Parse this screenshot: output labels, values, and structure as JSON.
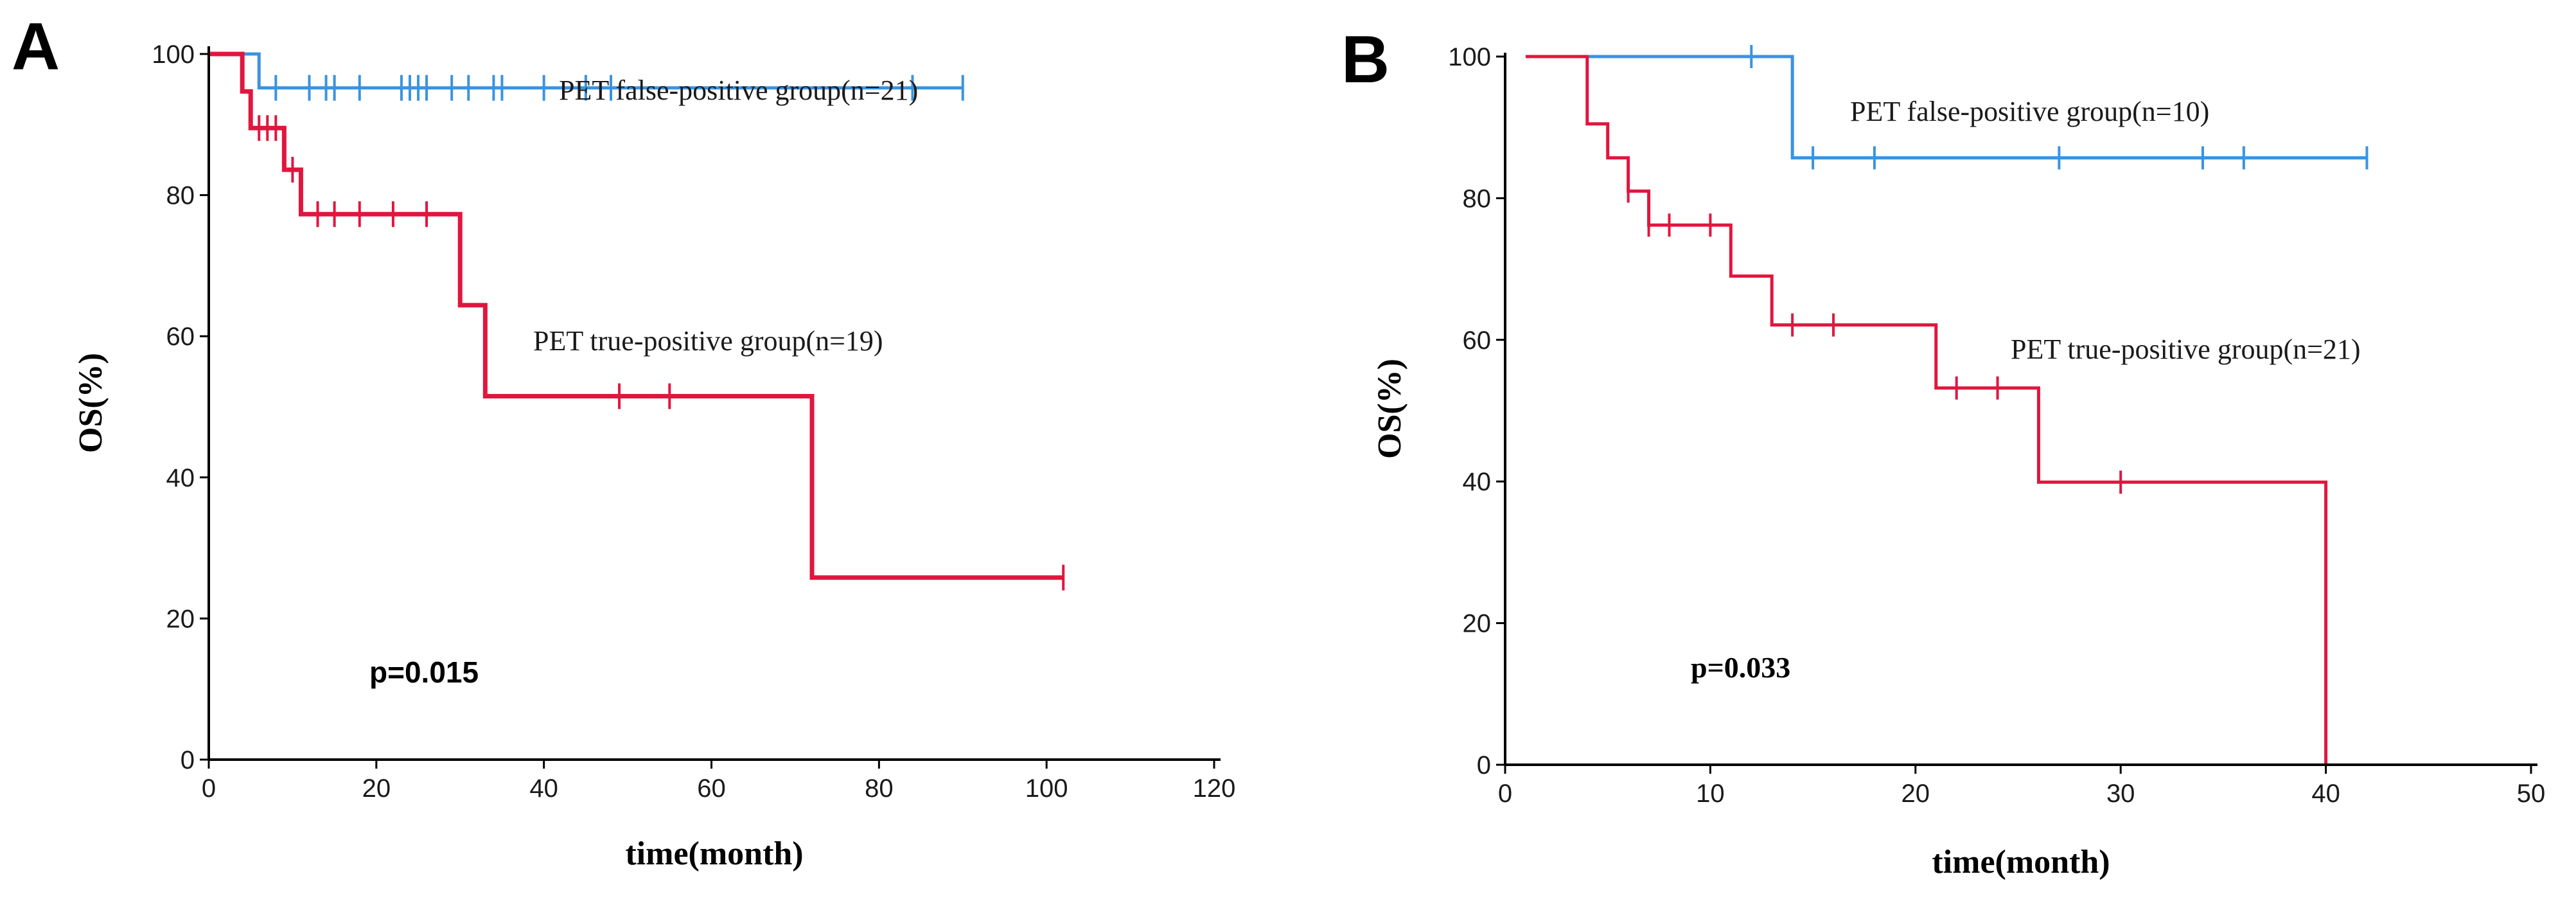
{
  "chart_data": [
    {
      "type": "line",
      "subtype": "kaplan-meier",
      "panel_label": "A",
      "xlabel": "time(month)",
      "ylabel": "OS(%)",
      "xlim": [
        0,
        120
      ],
      "ylim": [
        0,
        100
      ],
      "xticks": [
        0,
        20,
        40,
        60,
        80,
        100,
        120
      ],
      "yticks": [
        0,
        20,
        40,
        60,
        80,
        100
      ],
      "annotations": {
        "p_value": "p=0.015"
      },
      "series": [
        {
          "name": "PET false-positive group(n=21)",
          "color": "#3a93e0",
          "steps": [
            [
              0,
              100
            ],
            [
              6,
              95.2
            ],
            [
              90,
              95.2
            ]
          ],
          "censored": [
            [
              8,
              95.2
            ],
            [
              12,
              95.2
            ],
            [
              14,
              95.2
            ],
            [
              15,
              95.2
            ],
            [
              18,
              95.2
            ],
            [
              23,
              95.2
            ],
            [
              24,
              95.2
            ],
            [
              25,
              95.2
            ],
            [
              26,
              95.2
            ],
            [
              29,
              95.2
            ],
            [
              31,
              95.2
            ],
            [
              34,
              95.2
            ],
            [
              35,
              95.2
            ],
            [
              40,
              95.2
            ],
            [
              45,
              95.2
            ],
            [
              48,
              95.2
            ],
            [
              84,
              95.2
            ],
            [
              90,
              95.2
            ]
          ]
        },
        {
          "name": "PET true-positive group(n=19)",
          "color": "#e0163e",
          "steps": [
            [
              0,
              100
            ],
            [
              4,
              94.7
            ],
            [
              5,
              89.5
            ],
            [
              9,
              83.6
            ],
            [
              11,
              77.3
            ],
            [
              30,
              64.4
            ],
            [
              33,
              51.5
            ],
            [
              72,
              25.8
            ],
            [
              102,
              25.8
            ]
          ],
          "censored": [
            [
              6,
              89.5
            ],
            [
              7,
              89.5
            ],
            [
              8,
              89.5
            ],
            [
              10,
              83.6
            ],
            [
              13,
              77.3
            ],
            [
              15,
              77.3
            ],
            [
              18,
              77.3
            ],
            [
              22,
              77.3
            ],
            [
              26,
              77.3
            ],
            [
              49,
              51.5
            ],
            [
              55,
              51.5
            ],
            [
              102,
              25.8
            ]
          ]
        }
      ]
    },
    {
      "type": "line",
      "subtype": "kaplan-meier",
      "panel_label": "B",
      "xlabel": "time(month)",
      "ylabel": "OS(%)",
      "xlim": [
        0,
        50
      ],
      "ylim": [
        0,
        100
      ],
      "xticks": [
        0,
        10,
        20,
        30,
        40,
        50
      ],
      "yticks": [
        0,
        20,
        40,
        60,
        80,
        100
      ],
      "annotations": {
        "p_value": "p=0.033"
      },
      "series": [
        {
          "name": "PET false-positive group(n=10)",
          "color": "#3a93e0",
          "steps": [
            [
              1,
              100
            ],
            [
              14,
              85.7
            ],
            [
              42,
              85.7
            ]
          ],
          "censored": [
            [
              12,
              100
            ],
            [
              15,
              85.7
            ],
            [
              18,
              85.7
            ],
            [
              27,
              85.7
            ],
            [
              34,
              85.7
            ],
            [
              36,
              85.7
            ],
            [
              42,
              85.7
            ]
          ]
        },
        {
          "name": "PET true-positive group(n=21)",
          "color": "#e0163e",
          "steps": [
            [
              1,
              100
            ],
            [
              4,
              90.5
            ],
            [
              5,
              85.7
            ],
            [
              6,
              81
            ],
            [
              7,
              76.2
            ],
            [
              11,
              69
            ],
            [
              13,
              62.1
            ],
            [
              21,
              53.2
            ],
            [
              26,
              39.9
            ],
            [
              40,
              0
            ]
          ],
          "censored": [
            [
              6,
              81
            ],
            [
              7,
              76.2
            ],
            [
              8,
              76.2
            ],
            [
              10,
              76.2
            ],
            [
              14,
              62.1
            ],
            [
              16,
              62.1
            ],
            [
              22,
              53.2
            ],
            [
              24,
              53.2
            ],
            [
              30,
              39.9
            ]
          ]
        }
      ]
    }
  ]
}
